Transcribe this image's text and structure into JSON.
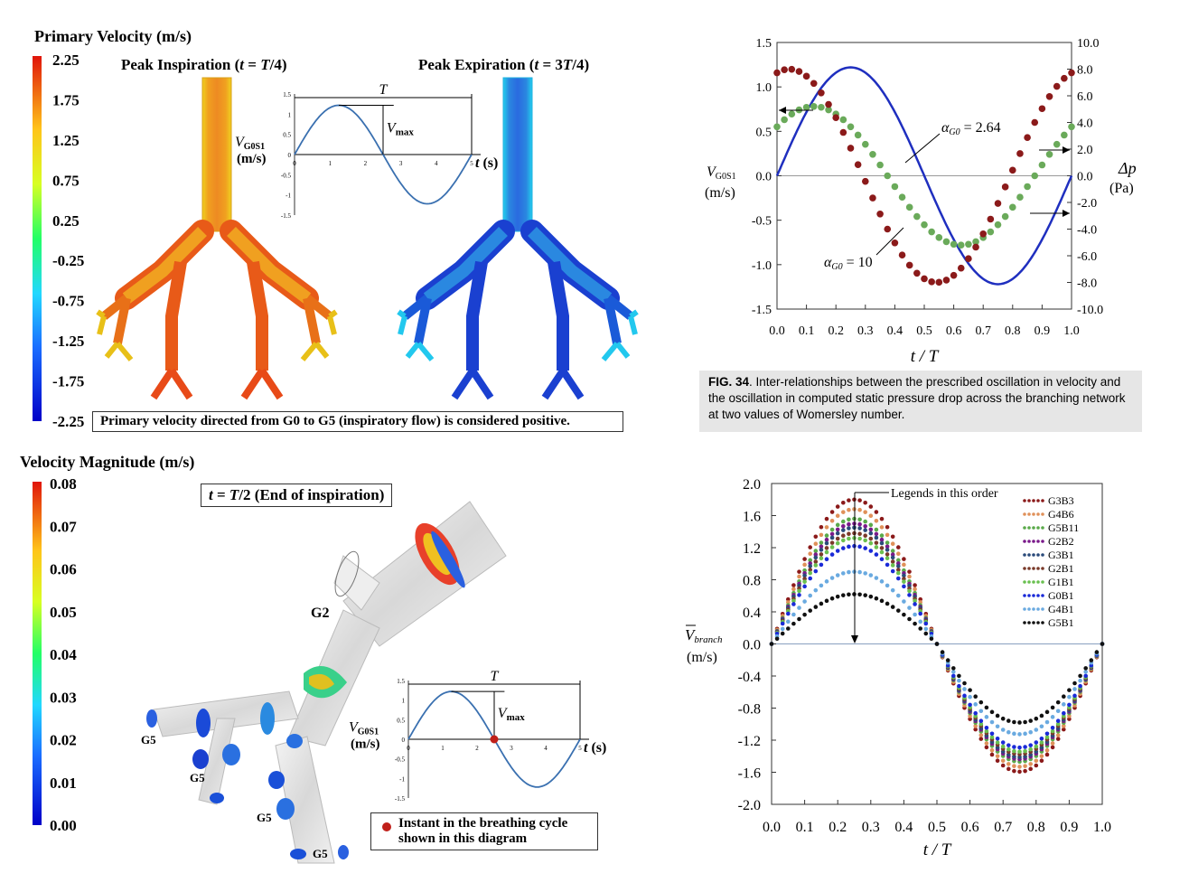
{
  "panel_tl": {
    "colorbar_title": "Primary Velocity (m/s)",
    "colorbar_ticks": [
      "2.25",
      "1.75",
      "1.25",
      "0.75",
      "0.25",
      "-0.25",
      "-0.75",
      "-1.25",
      "-1.75",
      "-2.25"
    ],
    "left_title_pre": "Peak Inspiration (",
    "left_title_t": "t",
    "left_title_eq": " = ",
    "left_title_T": "T",
    "left_title_post": "/4)",
    "right_title_pre": "Peak Expiration (",
    "right_title_t": "t",
    "right_title_eq": " = 3",
    "right_title_T": "T",
    "right_title_post": "/4)",
    "note": "Primary velocity directed from G0 to G5 (inspiratory flow) is considered positive.",
    "inset": {
      "yticks": [
        "1.5",
        "1",
        "0.5",
        "0",
        "-0.5",
        "-1",
        "-1.5"
      ],
      "xticks": [
        "0",
        "1",
        "2",
        "3",
        "4",
        "5"
      ],
      "T_label": "T",
      "vmax_V": "V",
      "vmax_sub": "max",
      "ylabel_V": "V",
      "ylabel_sub": "G0S1",
      "ylabel_unit": "(m/s)",
      "xlabel_t": "t",
      "xlabel_unit": "(s)"
    }
  },
  "panel_tr": {
    "left_yticks": [
      "1.5",
      "1.0",
      "0.5",
      "0.0",
      "-0.5",
      "-1.0",
      "-1.5"
    ],
    "right_yticks": [
      "10.0",
      "8.0",
      "6.0",
      "4.0",
      "2.0",
      "0.0",
      "-2.0",
      "-4.0",
      "-6.0",
      "-8.0",
      "-10.0"
    ],
    "xticks": [
      "0.0",
      "0.1",
      "0.2",
      "0.3",
      "0.4",
      "0.5",
      "0.6",
      "0.7",
      "0.8",
      "0.9",
      "1.0"
    ],
    "xlabel": "t / T",
    "left_ylabel_V": "V",
    "left_ylabel_sub": "G0S1",
    "left_ylabel_unit": "(m/s)",
    "right_ylabel": "Δp",
    "right_ylabel_unit": "(Pa)",
    "annot_a1": "α",
    "annot_a1_sub": "G0",
    "annot_a1_val": " = 2.64",
    "annot_a2": "α",
    "annot_a2_sub": "G0",
    "annot_a2_val": " = 10",
    "caption_fig": "FIG. 34",
    "caption_text": ". Inter-relationships between the prescribed oscillation in velocity and the oscillation in computed static pressure drop across the branching network at two values of Womersley number.",
    "colors": {
      "velocity": "#1f2fbf",
      "alpha264": "#6aaa5a",
      "alpha10": "#8b1a1a"
    }
  },
  "panel_bl": {
    "colorbar_title": "Velocity Magnitude (m/s)",
    "colorbar_ticks": [
      "0.08",
      "0.07",
      "0.06",
      "0.05",
      "0.04",
      "0.03",
      "0.02",
      "0.01",
      "0.00"
    ],
    "title_box_t": "t",
    "title_box_eq": " = ",
    "title_box_T": "T",
    "title_box_post": "/2 (End of inspiration)",
    "g2_label": "G2",
    "g5_label": "G5",
    "legend_text_line1": "Instant in the breathing cycle",
    "legend_text_line2": "shown in this diagram",
    "inset": {
      "yticks": [
        "1.5",
        "1",
        "0.5",
        "0",
        "-0.5",
        "-1",
        "-1.5"
      ],
      "xticks": [
        "0",
        "1",
        "2",
        "3",
        "4",
        "5"
      ],
      "T_label": "T",
      "vmax_V": "V",
      "vmax_sub": "max",
      "ylabel_V": "V",
      "ylabel_sub": "G0S1",
      "ylabel_unit": "(m/s)",
      "xlabel_t": "t",
      "xlabel_unit": "(s)"
    }
  },
  "panel_br": {
    "yticks": [
      "2.0",
      "1.6",
      "1.2",
      "0.8",
      "0.4",
      "0.0",
      "-0.4",
      "-0.8",
      "-1.2",
      "-1.6",
      "-2.0"
    ],
    "xticks": [
      "0.0",
      "0.1",
      "0.2",
      "0.3",
      "0.4",
      "0.5",
      "0.6",
      "0.7",
      "0.8",
      "0.9",
      "1.0"
    ],
    "xlabel": "t / T",
    "ylabel_V": "V",
    "ylabel_sub": "branch",
    "ylabel_unit": "(m/s)",
    "annotation": "Legends in this order"
  },
  "chart_data": [
    {
      "type": "line",
      "xlabel": "t / T",
      "ylabel": "V G0S1 (m/s)",
      "y2label": "Δp (Pa)",
      "xlim": [
        0,
        1
      ],
      "ylim": [
        -1.5,
        1.5
      ],
      "y2lim": [
        -10,
        10
      ],
      "grid": false,
      "series": [
        {
          "name": "",
          "axis": "left",
          "style": "line",
          "amplitude": 1.22,
          "phase": 0
        },
        {
          "name": "α G0 = 2.64",
          "axis": "right",
          "style": "dotted",
          "amplitude": 5.2,
          "phase_deg": 45,
          "x_start": 0.0,
          "x_end": 1.0
        },
        {
          "name": "α G0 = 10",
          "axis": "right",
          "style": "dotted",
          "amplitude": 8.0,
          "phase_deg": 75,
          "x_start": 0.0,
          "x_end": 1.0
        }
      ]
    },
    {
      "type": "line",
      "xlabel": "t / T",
      "ylabel": "V branch (m/s)",
      "xlim": [
        0,
        1
      ],
      "ylim": [
        -2.0,
        2.0
      ],
      "grid": false,
      "legend_position": "top-right",
      "series": [
        {
          "name": "G3B3",
          "color": "#8b1a1a",
          "amplitude": 1.8
        },
        {
          "name": "G4B6",
          "color": "#e0915a",
          "amplitude": 1.68
        },
        {
          "name": "G5B11",
          "color": "#5aaa4a",
          "amplitude": 1.56
        },
        {
          "name": "G2B2",
          "color": "#7a1a8a",
          "amplitude": 1.5
        },
        {
          "name": "G3B1",
          "color": "#2a4a7a",
          "amplitude": 1.45
        },
        {
          "name": "G2B1",
          "color": "#7a3a2a",
          "amplitude": 1.38
        },
        {
          "name": "G1B1",
          "color": "#6ac050",
          "amplitude": 1.32
        },
        {
          "name": "G0B1",
          "color": "#1a2ad8",
          "amplitude": 1.22
        },
        {
          "name": "G4B1",
          "color": "#6aaae0",
          "amplitude": 0.9
        },
        {
          "name": "G5B1",
          "color": "#111111",
          "amplitude": 0.62
        }
      ]
    }
  ]
}
